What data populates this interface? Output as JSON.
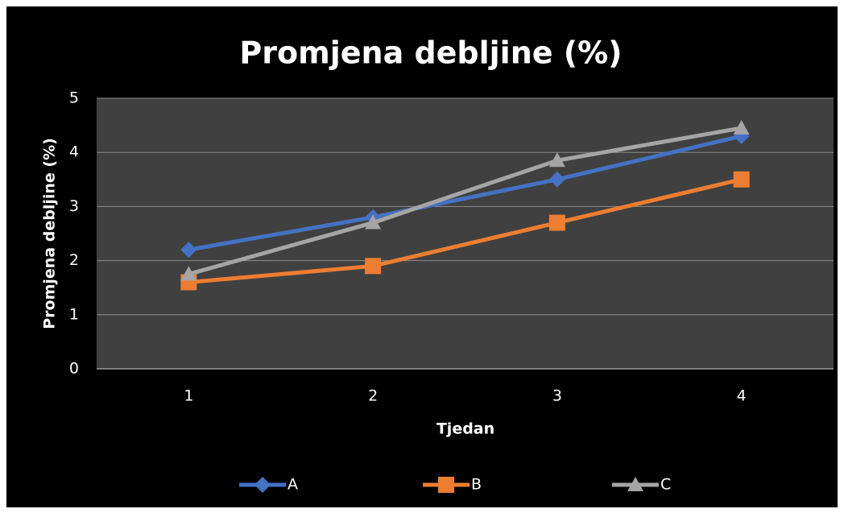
{
  "chart_data": {
    "type": "line",
    "title": "Promjena debljine (%)",
    "x_label": "Tjedan",
    "y_label": "Promjena debljine (%)",
    "categories": [
      "1",
      "2",
      "3",
      "4"
    ],
    "series": [
      {
        "name": "A",
        "color": "#4472c4",
        "marker": "diamond",
        "values": [
          2.2,
          2.8,
          3.5,
          4.3
        ]
      },
      {
        "name": "B",
        "color": "#ed7d31",
        "marker": "square",
        "values": [
          1.6,
          1.9,
          2.7,
          3.5
        ]
      },
      {
        "name": "C",
        "color": "#a5a5a5",
        "marker": "triangle",
        "values": [
          1.75,
          2.7,
          3.85,
          4.45
        ]
      }
    ],
    "ylim": [
      0,
      5
    ],
    "yticks": [
      0,
      1,
      2,
      3,
      4,
      5
    ],
    "grid": true,
    "legend": "bottom"
  }
}
